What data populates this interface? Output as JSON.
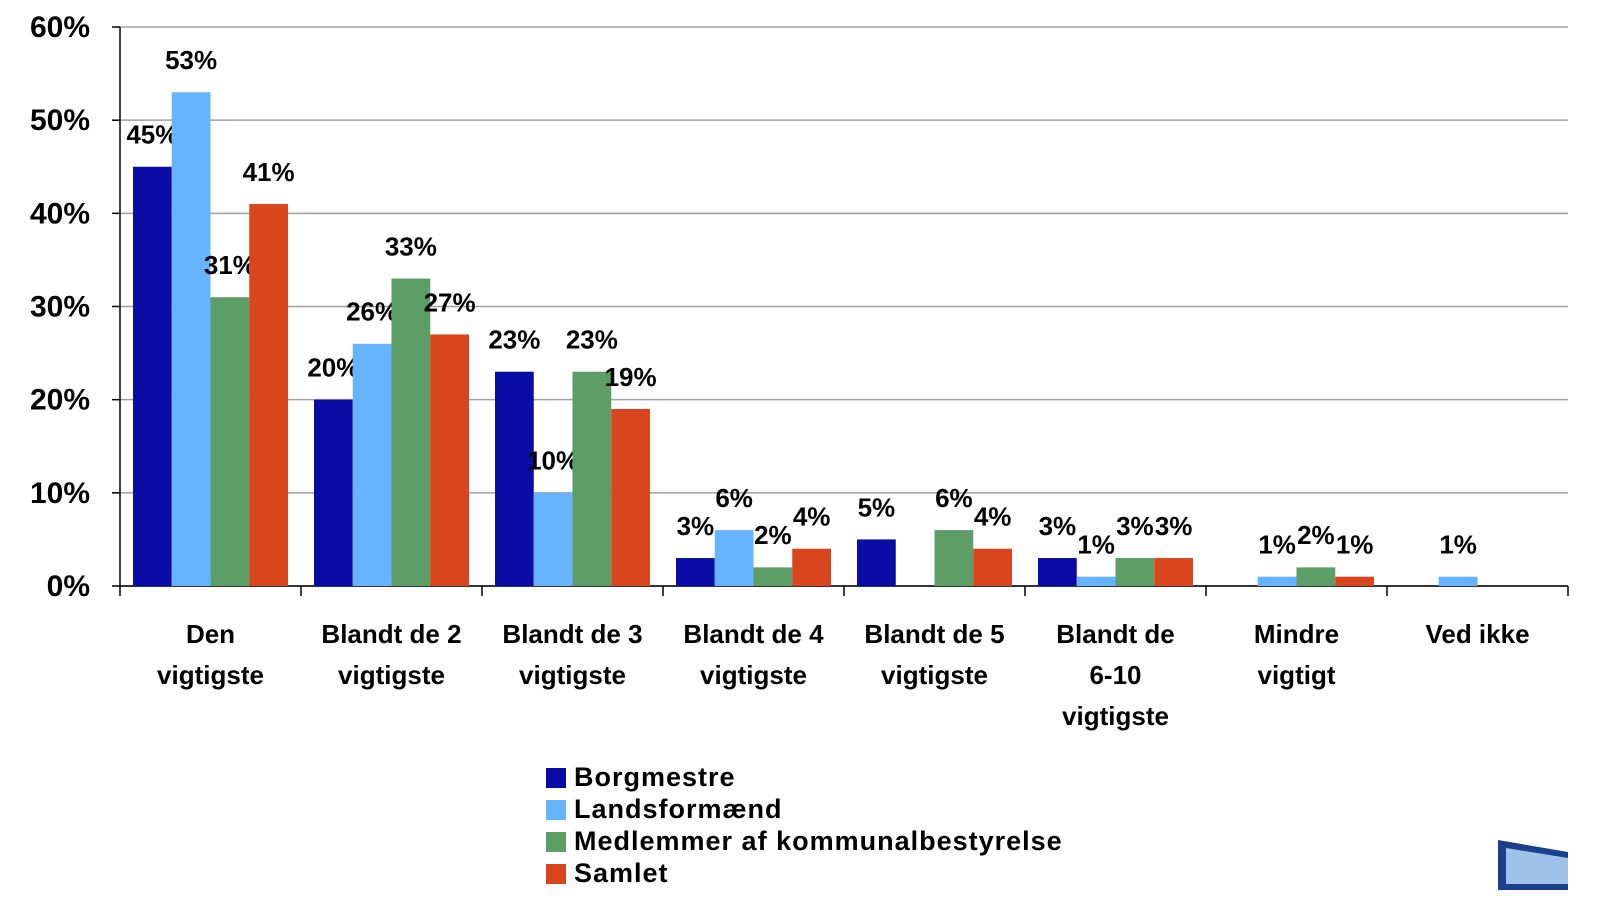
{
  "chart_data": {
    "type": "bar",
    "categories": [
      "Den\nvigtigste",
      "Blandt de 2\nvigtigste",
      "Blandt de 3\nvigtigste",
      "Blandt de 4\nvigtigste",
      "Blandt de 5\nvigtigste",
      "Blandt de\n6-10\nvigtigste",
      "Mindre\nvigtigt",
      "Ved ikke"
    ],
    "series": [
      {
        "name": "Borgmestre",
        "color": "#0b0ba6",
        "values": [
          45,
          20,
          23,
          3,
          5,
          3,
          null,
          null
        ],
        "value_labels": [
          "45%",
          "20%",
          "23%",
          "3%",
          "5%",
          "3%",
          null,
          null
        ]
      },
      {
        "name": "Landsformænd",
        "color": "#66b3ff",
        "values": [
          53,
          26,
          10,
          6,
          null,
          1,
          1,
          1
        ],
        "value_labels": [
          "53%",
          "26%",
          "10%",
          "6%",
          null,
          "1%",
          "1%",
          "1%"
        ]
      },
      {
        "name": "Medlemmer af kommunalbestyrelse",
        "color": "#5c9e66",
        "values": [
          31,
          33,
          23,
          2,
          6,
          3,
          2,
          null
        ],
        "value_labels": [
          "31%",
          "33%",
          "23%",
          "2%",
          "6%",
          "3%",
          "2%",
          null
        ]
      },
      {
        "name": "Samlet",
        "color": "#d9451c",
        "values": [
          41,
          27,
          19,
          4,
          4,
          3,
          1,
          null
        ],
        "value_labels": [
          "41%",
          "27%",
          "19%",
          "4%",
          "4%",
          "3%",
          "1%",
          null
        ]
      }
    ],
    "ylim": [
      0,
      60
    ],
    "yticks": [
      {
        "value": 0,
        "label": "0%"
      },
      {
        "value": 10,
        "label": "10%"
      },
      {
        "value": 20,
        "label": "20%"
      },
      {
        "value": 30,
        "label": "30%"
      },
      {
        "value": 40,
        "label": "40%"
      },
      {
        "value": 50,
        "label": "50%"
      },
      {
        "value": 60,
        "label": "60%"
      }
    ],
    "grid": true,
    "legend": "bottom"
  }
}
